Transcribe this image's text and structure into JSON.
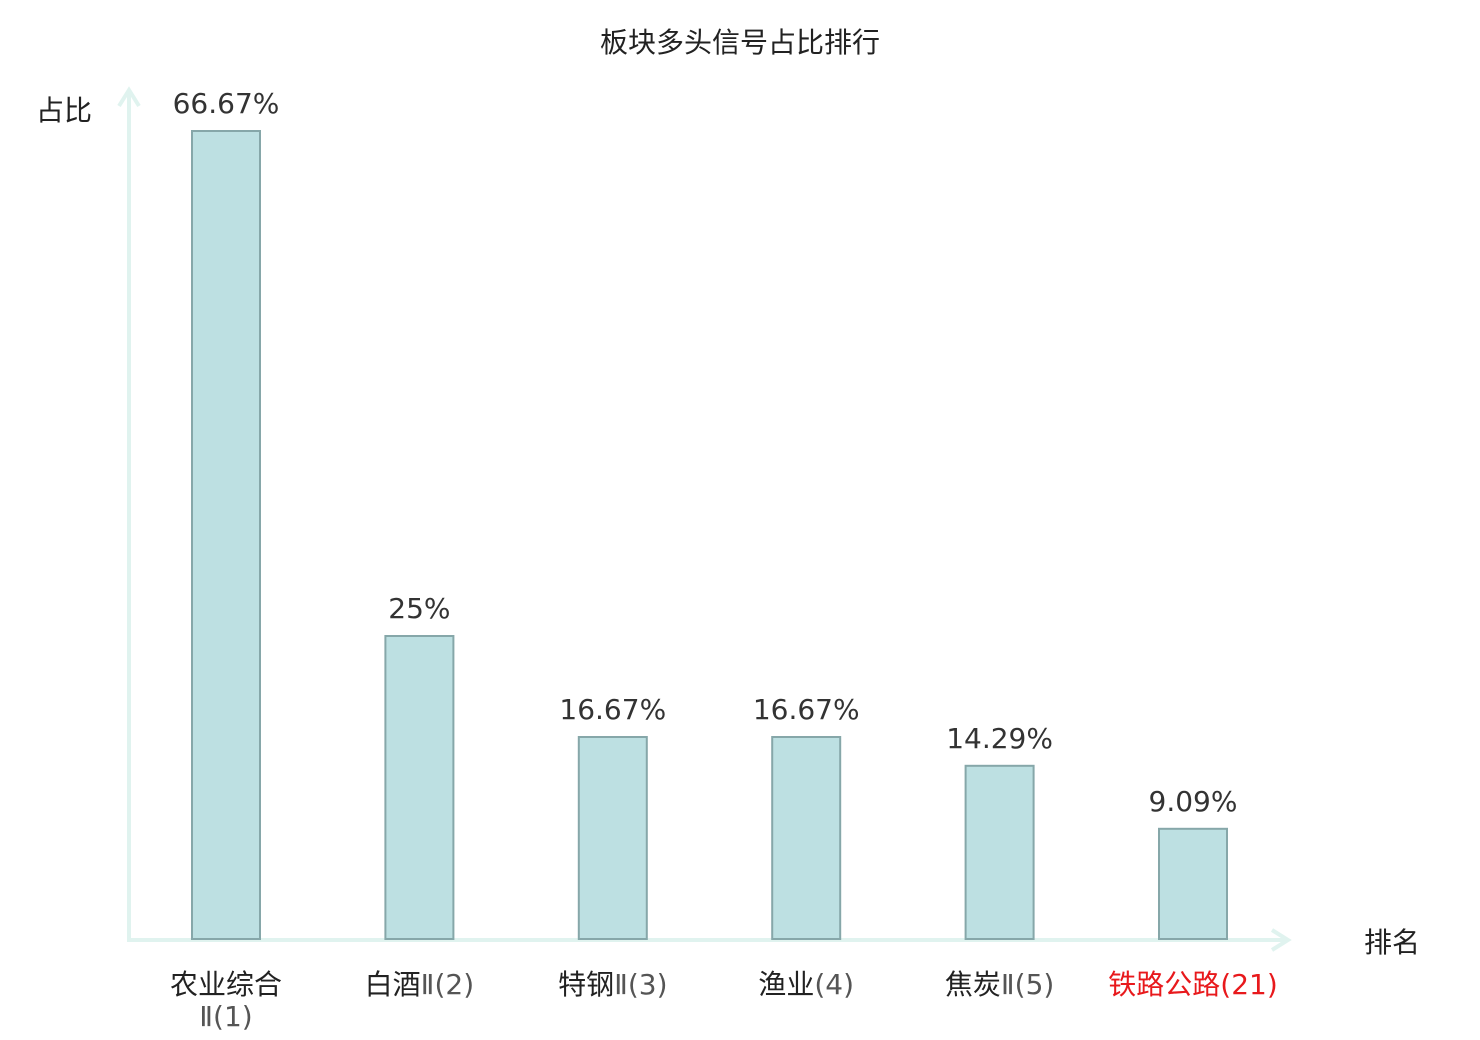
{
  "chart_data": {
    "type": "bar",
    "title": "板块多头信号占比排行",
    "xlabel": "排名",
    "ylabel": "占比",
    "categories": [
      {
        "name": "农业综合",
        "suffix": "Ⅱ(1)",
        "highlight": false,
        "wrap": true
      },
      {
        "name": "白酒",
        "suffix": "Ⅱ(2)",
        "highlight": false,
        "wrap": false
      },
      {
        "name": "特钢",
        "suffix": "Ⅱ(3)",
        "highlight": false,
        "wrap": false
      },
      {
        "name": "渔业",
        "suffix": "(4)",
        "highlight": false,
        "wrap": false
      },
      {
        "name": "焦炭",
        "suffix": "Ⅱ(5)",
        "highlight": false,
        "wrap": false
      },
      {
        "name": "铁路公路",
        "suffix": "(21)",
        "highlight": true,
        "wrap": false
      }
    ],
    "values": [
      66.67,
      25,
      16.67,
      16.67,
      14.29,
      9.09
    ],
    "value_labels": [
      "66.67%",
      "25%",
      "16.67%",
      "16.67%",
      "14.29%",
      "9.09%"
    ],
    "ylim": [
      0,
      66.67
    ],
    "grid": false,
    "legend": "none",
    "colors": {
      "bar_fill": "#bde0e2",
      "bar_stroke": "#86a7a9",
      "axis": "#e0f3ef",
      "highlight": "#e8191c",
      "suffix": "#555555",
      "text": "#222222"
    }
  }
}
